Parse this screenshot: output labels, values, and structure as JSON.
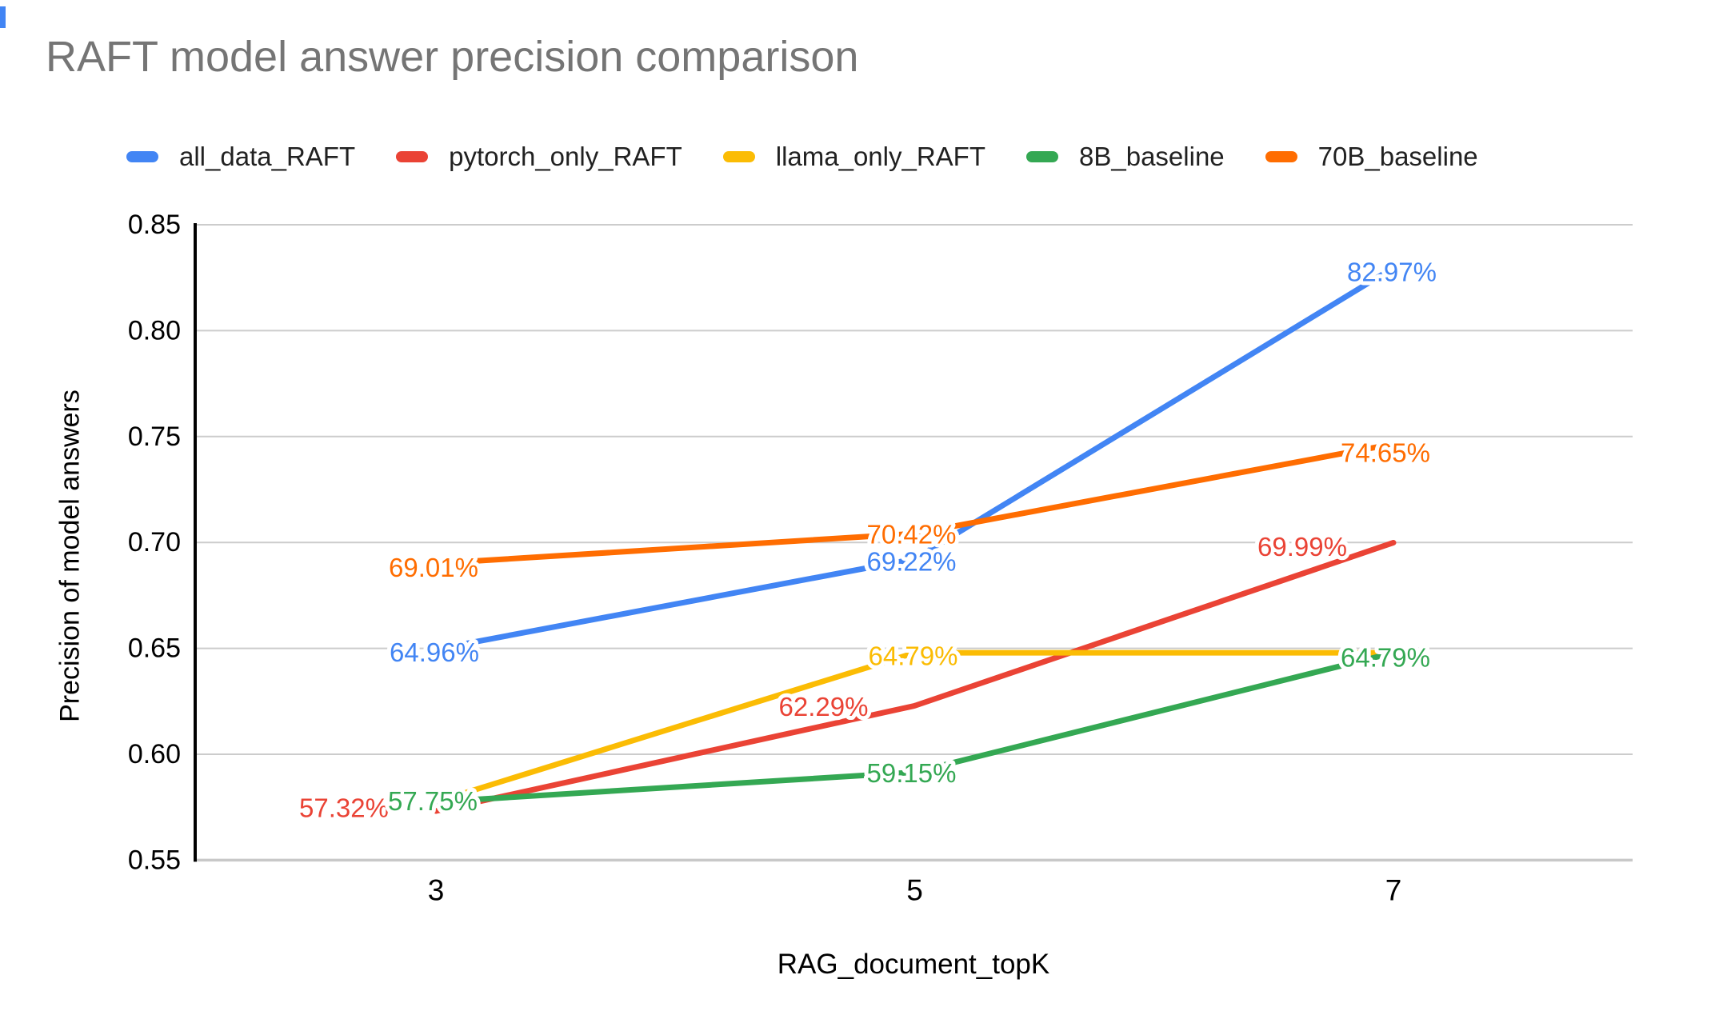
{
  "chart_data": {
    "type": "line",
    "title": "RAFT model answer precision comparison",
    "xlabel": "RAG_document_topK",
    "ylabel": "Precision of model answers",
    "x": [
      3,
      5,
      7
    ],
    "x_tick_labels": [
      "3",
      "5",
      "7"
    ],
    "y_tick_labels": [
      "0.85",
      "0.80",
      "0.75",
      "0.70",
      "0.65",
      "0.60",
      "0.55"
    ],
    "ylim": [
      0.55,
      0.85
    ],
    "y_step": 0.05,
    "grid": true,
    "legend_position": "top",
    "series": [
      {
        "name": "all_data_RAFT",
        "color": "#4285F4",
        "values_pct": [
          64.96,
          69.22,
          82.97
        ],
        "point_labels": [
          "64.96%",
          "69.22%",
          "82.97%"
        ],
        "label_offsets": [
          [
            -2,
            4
          ],
          [
            -4,
            3
          ],
          [
            -2,
            5
          ]
        ]
      },
      {
        "name": "pytorch_only_RAFT",
        "color": "#EA4335",
        "values_pct": [
          57.32,
          62.29,
          69.99
        ],
        "point_labels": [
          "57.32%",
          "62.29%",
          "69.99%"
        ],
        "label_offsets": [
          [
            -115,
            -4
          ],
          [
            -114,
            1
          ],
          [
            -114,
            5
          ]
        ]
      },
      {
        "name": "llama_only_RAFT",
        "color": "#FBBC04",
        "values_pct": [
          57.75,
          64.79,
          64.79
        ],
        "point_labels": [
          null,
          "64.79%",
          null
        ],
        "label_offsets": [
          [
            0,
            0
          ],
          [
            -2,
            4
          ],
          [
            0,
            0
          ]
        ]
      },
      {
        "name": "8B_baseline",
        "color": "#34A853",
        "values_pct": [
          57.75,
          59.15,
          64.79
        ],
        "point_labels": [
          "57.75%",
          "59.15%",
          "64.79%"
        ],
        "label_offsets": [
          [
            -4,
            -1
          ],
          [
            -4,
            1
          ],
          [
            -10,
            6
          ]
        ]
      },
      {
        "name": "70B_baseline",
        "color": "#FF6D01",
        "values_pct": [
          69.01,
          70.42,
          74.65
        ],
        "point_labels": [
          "69.01%",
          "70.42%",
          "74.65%"
        ],
        "label_offsets": [
          [
            -3,
            5
          ],
          [
            -4,
            1
          ],
          [
            -10,
            11
          ]
        ]
      }
    ]
  },
  "colors": {
    "title_text": "#757575",
    "axis_text": "#000000",
    "legend_text": "#212121",
    "gridline": "#cccccc",
    "bottom_gridline": "#c8c8c8",
    "axis_line": "#000000",
    "background": "#ffffff",
    "corner_artifact": "#4285F4",
    "label_halo": "#ffffff"
  }
}
